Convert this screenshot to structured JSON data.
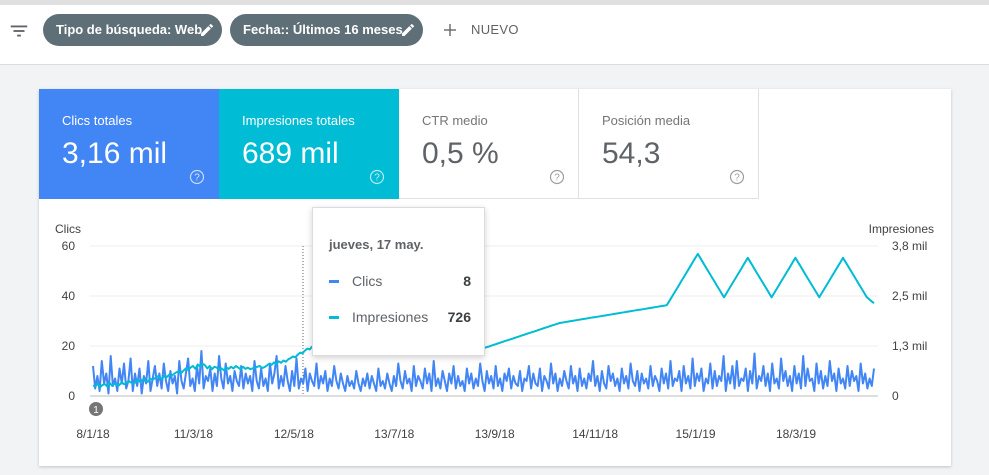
{
  "filters": {
    "chips": [
      {
        "label": "Tipo de búsqueda: Web"
      },
      {
        "label": "Fecha:: Últimos 16 meses"
      }
    ],
    "new_label": "NUEVO"
  },
  "metrics": [
    {
      "label": "Clics totales",
      "value": "3,16 mil",
      "color": "#4285f4"
    },
    {
      "label": "Impresiones totales",
      "value": "689 mil",
      "color": "#00bcd4"
    },
    {
      "label": "CTR medio",
      "value": "0,5 %"
    },
    {
      "label": "Posición media",
      "value": "54,3"
    }
  ],
  "tooltip": {
    "date": "jueves, 17 may.",
    "rows": [
      {
        "name": "Clics",
        "value": "8",
        "color": "#4285f4"
      },
      {
        "name": "Impresiones",
        "value": "726",
        "color": "#00bcd4"
      }
    ]
  },
  "chart_data": {
    "type": "line",
    "ylabel": "Clics",
    "y2label": "Impresiones",
    "ylim": [
      0,
      60
    ],
    "y2lim": [
      0,
      3800
    ],
    "left_ticks": [
      "0",
      "20",
      "40",
      "60"
    ],
    "right_ticks": [
      "0",
      "1,3 mil",
      "2,5 mil",
      "3,8 mil"
    ],
    "x_ticks": [
      "8/1/18",
      "11/3/18",
      "12/5/18",
      "13/7/18",
      "13/9/18",
      "14/11/18",
      "15/1/19",
      "18/3/19"
    ],
    "annotation": "1",
    "series": [
      {
        "name": "Clics",
        "color": "#4285f4",
        "axis": "left",
        "values": [
          12,
          3,
          8,
          2,
          14,
          5,
          9,
          1,
          16,
          4,
          7,
          2,
          11,
          5,
          13,
          3,
          6,
          15,
          2,
          9,
          4,
          11,
          1,
          8,
          5,
          14,
          2,
          7,
          12,
          4,
          9,
          3,
          13,
          6,
          2,
          10,
          5,
          8,
          1,
          14,
          6,
          3,
          9,
          15,
          4,
          7,
          2,
          12,
          5,
          18,
          3,
          8,
          6,
          11,
          2,
          9,
          4,
          16,
          7,
          3,
          13,
          5,
          8,
          2,
          10,
          6,
          4,
          12,
          3,
          9,
          5,
          8,
          2,
          14,
          6,
          3,
          11,
          4,
          7,
          2,
          13,
          5,
          9,
          16,
          3,
          8,
          4,
          12,
          6,
          2,
          10,
          4,
          15,
          3,
          7,
          5,
          11,
          2,
          9,
          6,
          4,
          13,
          3,
          8,
          5,
          10,
          2,
          7,
          4,
          12,
          6,
          3,
          9,
          5,
          2,
          8,
          4,
          6,
          3,
          10,
          5,
          2,
          7,
          4,
          9,
          3,
          8,
          5,
          2,
          11,
          4,
          6,
          3,
          9,
          5,
          2,
          8,
          4,
          13,
          6,
          3,
          10,
          5,
          7,
          2,
          12,
          4,
          8,
          6,
          3,
          11,
          5,
          9,
          2,
          14,
          4,
          7,
          3,
          10,
          6,
          2,
          9,
          5,
          12,
          3,
          8,
          4,
          6,
          2,
          11,
          5,
          9,
          3,
          7,
          4,
          13,
          6,
          2,
          10,
          5,
          8,
          3,
          12,
          4,
          7,
          2,
          9,
          6,
          11,
          3,
          8,
          5,
          4,
          10,
          2,
          7,
          6,
          12,
          3,
          9,
          5,
          4,
          11,
          2,
          8,
          6,
          3,
          13,
          5,
          9,
          2,
          7,
          4,
          10,
          6,
          3,
          12,
          5,
          8,
          2,
          11,
          4,
          7,
          3,
          9,
          6,
          14,
          4,
          8,
          2,
          10,
          5,
          3,
          12,
          6,
          9,
          4,
          7,
          2,
          11,
          5,
          8,
          3,
          13,
          6,
          4,
          10,
          2,
          9,
          5,
          7,
          3,
          12,
          4,
          8,
          6,
          2,
          11,
          5,
          9,
          3,
          14,
          4,
          7,
          6,
          10,
          2,
          12,
          5,
          8,
          3,
          15,
          4,
          9,
          6,
          11,
          2,
          7,
          5,
          13,
          3,
          10,
          4,
          8,
          6,
          16,
          2,
          9,
          5,
          12,
          3,
          14,
          4,
          7,
          6,
          11,
          2,
          10,
          5,
          17,
          3,
          8,
          6,
          12,
          4,
          9,
          2,
          13,
          5,
          7,
          3,
          15,
          6,
          10,
          4,
          8,
          2,
          12,
          5,
          9,
          3,
          16,
          4,
          11,
          6,
          7,
          2,
          13,
          5,
          10,
          3,
          8,
          4,
          14,
          6,
          9,
          2,
          11,
          5,
          7,
          3,
          12,
          4,
          10,
          6,
          8,
          2,
          13,
          5,
          9,
          3,
          7,
          4,
          11
        ]
      },
      {
        "name": "Impresiones",
        "color": "#00bcd4",
        "axis": "right",
        "values": [
          260,
          250,
          310,
          220,
          280,
          300,
          240,
          330,
          260,
          310,
          290,
          270,
          350,
          300,
          330,
          380,
          340,
          310,
          360,
          400,
          350,
          420,
          390,
          360,
          440,
          410,
          450,
          500,
          470,
          430,
          520,
          480,
          540,
          510,
          560,
          600,
          620,
          580,
          640,
          700,
          660,
          720,
          760,
          690,
          800,
          740,
          820,
          780,
          700,
          760,
          680,
          740,
          720,
          660,
          700,
          650,
          720,
          690,
          740,
          700,
          760,
          720,
          680,
          740,
          690,
          720,
          680,
          700,
          720,
          740,
          760,
          710,
          730,
          770,
          820,
          790,
          850,
          800,
          880,
          840,
          900,
          870,
          930,
          960,
          1000,
          980,
          1050,
          1100,
          1080,
          1150,
          1200,
          1180,
          1250,
          1230,
          1300,
          1350,
          1400,
          1380,
          1450,
          1500,
          1480,
          1550,
          1530,
          1600,
          1650,
          1620,
          1700,
          1680,
          1720,
          1750,
          1780,
          1820,
          1800,
          1850,
          1900,
          1880,
          1950,
          2000,
          1980,
          2050,
          2100,
          2080,
          2150,
          2200,
          2180,
          2250,
          2300,
          2200,
          2150,
          2100,
          2050,
          1900,
          1850,
          1800,
          1750,
          1700,
          1650,
          1600,
          1550,
          1500,
          1450,
          1420,
          1380,
          1350,
          1320,
          1300,
          1280,
          1260,
          1240,
          1220,
          1200,
          1190,
          1180,
          1170,
          1160,
          1150,
          1150,
          1140,
          1140,
          1150,
          1160,
          1170,
          1180,
          1200,
          1210,
          1230,
          1250,
          1270,
          1290,
          1310,
          1330,
          1350,
          1370,
          1390,
          1410,
          1430,
          1450,
          1470,
          1490,
          1510,
          1530,
          1550,
          1570,
          1590,
          1610,
          1630,
          1650,
          1670,
          1690,
          1710,
          1730,
          1750,
          1770,
          1790,
          1810,
          1830,
          1850,
          1860,
          1870,
          1880,
          1890,
          1900,
          1910,
          1920,
          1930,
          1940,
          1950,
          1960,
          1970,
          1980,
          1990,
          2000,
          2010,
          2020,
          2030,
          2040,
          2050,
          2060,
          2070,
          2080,
          2090,
          2100,
          2110,
          2120,
          2130,
          2140,
          2150,
          2160,
          2170,
          2180,
          2190,
          2200,
          2210,
          2220,
          2230,
          2240,
          2250,
          2260,
          2270,
          2280,
          2290,
          2300,
          2400,
          2500,
          2600,
          2700,
          2800,
          2900,
          3000,
          3100,
          3200,
          3300,
          3400,
          3500,
          3600,
          3500,
          3400,
          3300,
          3200,
          3100,
          3000,
          2900,
          2800,
          2700,
          2600,
          2500,
          2600,
          2700,
          2800,
          2900,
          3000,
          3100,
          3200,
          3300,
          3400,
          3500,
          3400,
          3300,
          3200,
          3100,
          3000,
          2900,
          2800,
          2700,
          2600,
          2500,
          2600,
          2700,
          2800,
          2900,
          3000,
          3100,
          3200,
          3300,
          3400,
          3500,
          3400,
          3300,
          3200,
          3100,
          3000,
          2900,
          2800,
          2700,
          2600,
          2500,
          2600,
          2700,
          2800,
          2900,
          3000,
          3100,
          3200,
          3300,
          3400,
          3500,
          3400,
          3300,
          3200,
          3100,
          3000,
          2900,
          2800,
          2700,
          2600,
          2500,
          2450,
          2400,
          2350
        ]
      }
    ]
  }
}
